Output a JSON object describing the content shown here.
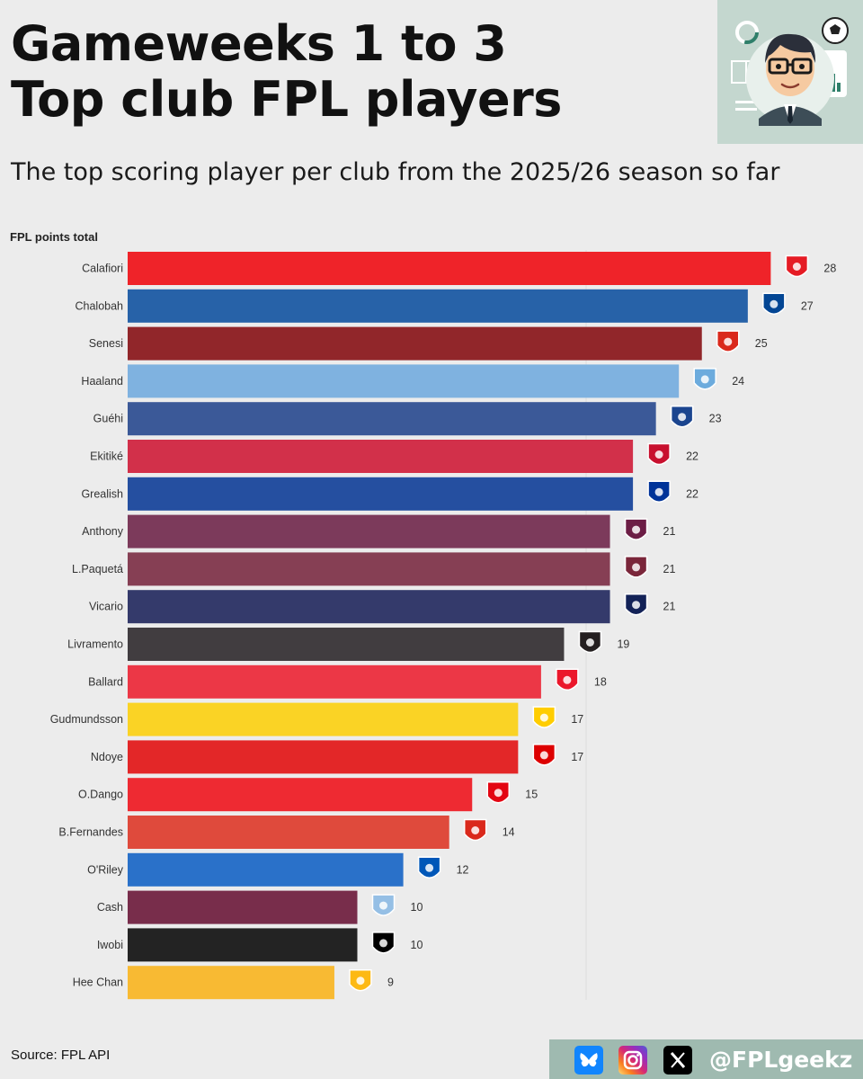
{
  "header": {
    "title_line1": "Gameweeks 1 to 3",
    "title_line2": "Top club FPL players",
    "subtitle": "The top scoring player per club from the 2025/26 season so far"
  },
  "chart_data": {
    "type": "bar",
    "orientation": "horizontal",
    "title": "Gameweeks 1 to 3 Top club FPL players",
    "subtitle": "The top scoring player per club from the 2025/26 season so far",
    "xlabel": "",
    "ylabel": "FPL points total",
    "xlim": [
      0,
      28
    ],
    "grid": false,
    "categories": [
      "Calafiori",
      "Chalobah",
      "Senesi",
      "Haaland",
      "Guéhi",
      "Ekitiké",
      "Grealish",
      "Anthony",
      "L.Paquetá",
      "Vicario",
      "Livramento",
      "Ballard",
      "Gudmundsson",
      "Ndoye",
      "O.Dango",
      "B.Fernandes",
      "O'Riley",
      "Cash",
      "Iwobi",
      "Hee Chan"
    ],
    "values": [
      28,
      27,
      25,
      24,
      23,
      22,
      22,
      21,
      21,
      21,
      19,
      18,
      17,
      17,
      15,
      14,
      12,
      10,
      10,
      9
    ],
    "bar_colors": [
      "#ef2329",
      "#2762a8",
      "#91262a",
      "#7fb2e0",
      "#3b5998",
      "#d2304a",
      "#254fa0",
      "#7c3a5b",
      "#863f54",
      "#343a6b",
      "#413d40",
      "#ec3746",
      "#fad325",
      "#e32728",
      "#ee2a32",
      "#df4a3c",
      "#2a71c9",
      "#782d4b",
      "#232323",
      "#f8ba33"
    ],
    "club_badges": [
      "arsenal-badge",
      "chelsea-badge",
      "bournemouth-badge",
      "man-city-badge",
      "crystal-palace-badge",
      "liverpool-badge",
      "everton-badge",
      "burnley-badge",
      "west-ham-badge",
      "tottenham-badge",
      "newcastle-badge",
      "sunderland-badge",
      "leeds-badge",
      "nottingham-forest-badge",
      "brentford-badge",
      "man-utd-badge",
      "brighton-badge",
      "aston-villa-badge",
      "fulham-badge",
      "wolves-badge"
    ],
    "badge_colors": [
      "#e51b24",
      "#034694",
      "#da291c",
      "#6cabdd",
      "#1b458f",
      "#c8102e",
      "#003399",
      "#6c1d45",
      "#7a263a",
      "#132257",
      "#241f20",
      "#eb172b",
      "#ffcd00",
      "#dd0000",
      "#e30613",
      "#da291c",
      "#0057b8",
      "#95bfe5",
      "#000000",
      "#fdb913"
    ]
  },
  "footer": {
    "source": "Source: FPL API",
    "social": {
      "handle": "@FPLgeekz",
      "icons": [
        "bluesky-icon",
        "instagram-icon",
        "x-icon"
      ],
      "colors": [
        "#1185fe",
        "#d62976",
        "#000000"
      ]
    }
  },
  "avatar": {
    "icon": "cartoon-analyst-avatar"
  }
}
